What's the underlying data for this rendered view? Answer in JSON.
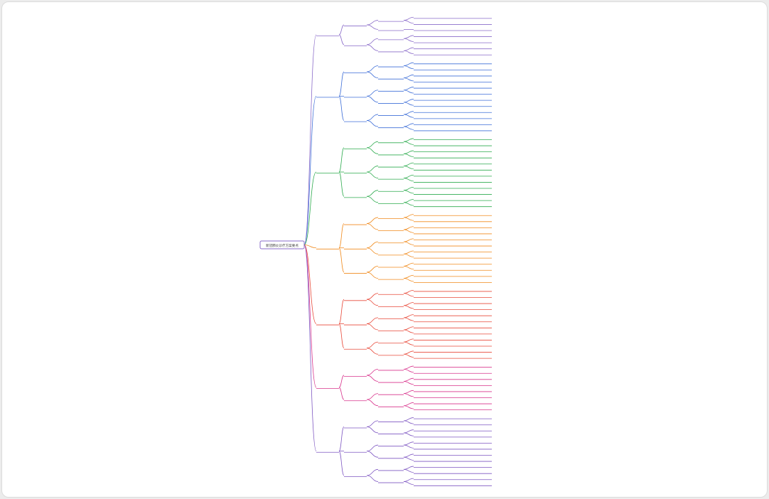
{
  "colors": {
    "background": "#ececec",
    "canvas": "#ffffff",
    "branches": [
      "#8a6bc9",
      "#3f6fd8",
      "#2eab4f",
      "#f08a1c",
      "#e84a3a",
      "#d8338c",
      "#7e57c2"
    ]
  },
  "mindmap": {
    "root": "新冠肺炎诊疗方案要点",
    "branches": [
      {
        "label": "",
        "children": [
          {
            "label": "",
            "children": [
              {
                "label": "",
                "leaves": [
                  "",
                  ""
                ]
              },
              {
                "label": "",
                "leaves": [
                  ""
                ]
              }
            ]
          },
          {
            "label": "",
            "children": [
              {
                "label": "",
                "leaves": [
                  "",
                  ""
                ]
              },
              {
                "label": "",
                "leaves": [
                  "",
                  ""
                ]
              }
            ]
          }
        ]
      },
      {
        "label": "",
        "children": [
          {
            "label": "",
            "children": [
              {
                "label": "",
                "leaves": [
                  "",
                  ""
                ]
              },
              {
                "label": "",
                "leaves": [
                  "",
                  ""
                ]
              }
            ]
          },
          {
            "label": "",
            "children": [
              {
                "label": "",
                "leaves": [
                  "",
                  ""
                ]
              },
              {
                "label": "",
                "leaves": [
                  "",
                  ""
                ]
              }
            ]
          },
          {
            "label": "",
            "children": [
              {
                "label": "",
                "leaves": [
                  "",
                  ""
                ]
              },
              {
                "label": "",
                "leaves": [
                  "",
                  ""
                ]
              }
            ]
          }
        ]
      },
      {
        "label": "",
        "children": [
          {
            "label": "",
            "children": [
              {
                "label": "",
                "leaves": [
                  "",
                  ""
                ]
              },
              {
                "label": "",
                "leaves": [
                  "",
                  ""
                ]
              }
            ]
          },
          {
            "label": "",
            "children": [
              {
                "label": "",
                "leaves": [
                  "",
                  ""
                ]
              },
              {
                "label": "",
                "leaves": [
                  "",
                  ""
                ]
              }
            ]
          },
          {
            "label": "",
            "children": [
              {
                "label": "",
                "leaves": [
                  "",
                  ""
                ]
              },
              {
                "label": "",
                "leaves": [
                  "",
                  ""
                ]
              }
            ]
          }
        ]
      },
      {
        "label": "",
        "children": [
          {
            "label": "",
            "children": [
              {
                "label": "",
                "leaves": [
                  "",
                  ""
                ]
              },
              {
                "label": "",
                "leaves": [
                  "",
                  ""
                ]
              }
            ]
          },
          {
            "label": "",
            "children": [
              {
                "label": "",
                "leaves": [
                  "",
                  ""
                ]
              },
              {
                "label": "",
                "leaves": [
                  "",
                  ""
                ]
              }
            ]
          },
          {
            "label": "",
            "children": [
              {
                "label": "",
                "leaves": [
                  "",
                  ""
                ]
              },
              {
                "label": "",
                "leaves": [
                  "",
                  ""
                ]
              }
            ]
          }
        ]
      },
      {
        "label": "",
        "children": [
          {
            "label": "",
            "children": [
              {
                "label": "",
                "leaves": [
                  "",
                  ""
                ]
              },
              {
                "label": "",
                "leaves": [
                  "",
                  ""
                ]
              }
            ]
          },
          {
            "label": "",
            "children": [
              {
                "label": "",
                "leaves": [
                  "",
                  ""
                ]
              },
              {
                "label": "",
                "leaves": [
                  "",
                  ""
                ]
              }
            ]
          },
          {
            "label": "",
            "children": [
              {
                "label": "",
                "leaves": [
                  "",
                  ""
                ]
              },
              {
                "label": "",
                "leaves": [
                  "",
                  ""
                ]
              }
            ]
          }
        ]
      },
      {
        "label": "",
        "children": [
          {
            "label": "",
            "children": [
              {
                "label": "",
                "leaves": [
                  "",
                  ""
                ]
              },
              {
                "label": "",
                "leaves": [
                  "",
                  ""
                ]
              }
            ]
          },
          {
            "label": "",
            "children": [
              {
                "label": "",
                "leaves": [
                  "",
                  ""
                ]
              },
              {
                "label": "",
                "leaves": [
                  "",
                  ""
                ]
              }
            ]
          }
        ]
      },
      {
        "label": "",
        "children": [
          {
            "label": "",
            "children": [
              {
                "label": "",
                "leaves": [
                  "",
                  ""
                ]
              },
              {
                "label": "",
                "leaves": [
                  "",
                  ""
                ]
              }
            ]
          },
          {
            "label": "",
            "children": [
              {
                "label": "",
                "leaves": [
                  "",
                  ""
                ]
              },
              {
                "label": "",
                "leaves": [
                  "",
                  ""
                ]
              }
            ]
          },
          {
            "label": "",
            "children": [
              {
                "label": "",
                "leaves": [
                  "",
                  ""
                ]
              },
              {
                "label": "",
                "leaves": [
                  "",
                  ""
                ]
              }
            ]
          }
        ]
      }
    ]
  }
}
